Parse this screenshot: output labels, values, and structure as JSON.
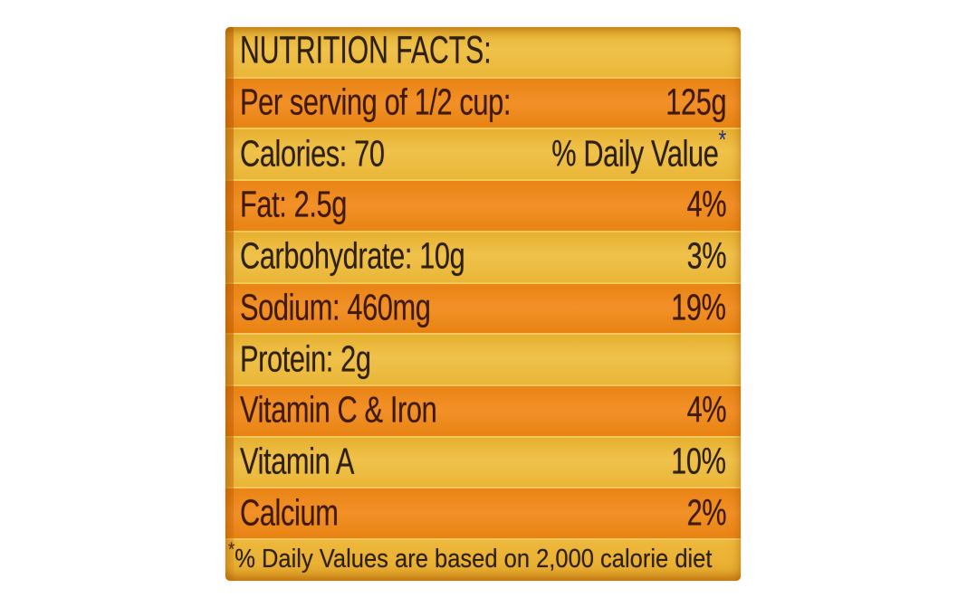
{
  "label": {
    "title": "NUTRITION FACTS:",
    "rows": [
      {
        "left": "Per serving of 1/2 cup:",
        "right": "125g"
      },
      {
        "left": "Calories: 70",
        "right": "% Daily Value",
        "right_sup": "*"
      },
      {
        "left": "Fat: 2.5g",
        "right": "4%"
      },
      {
        "left": "Carbohydrate: 10g",
        "right": "3%"
      },
      {
        "left": "Sodium: 460mg",
        "right": "19%"
      },
      {
        "left": "Protein: 2g",
        "right": ""
      },
      {
        "left": "Vitamin C & Iron",
        "right": "4%"
      },
      {
        "left": "Vitamin A",
        "right": "10%"
      },
      {
        "left": "Calcium",
        "right": "2%"
      }
    ],
    "footnote": {
      "sup": "*",
      "text": "% Daily Values are based on 2,000 calorie diet"
    }
  },
  "colors": {
    "page-bg": "#ffffff",
    "label-base": "#f2c85c",
    "yellow-band": "#ecb93a",
    "orange-band": "#ef8c1e",
    "left-edge": "#d87c10",
    "text-dark": "#2e2012",
    "text-orange-band": "#401a09",
    "asterisk-blue": "#2e3288"
  }
}
